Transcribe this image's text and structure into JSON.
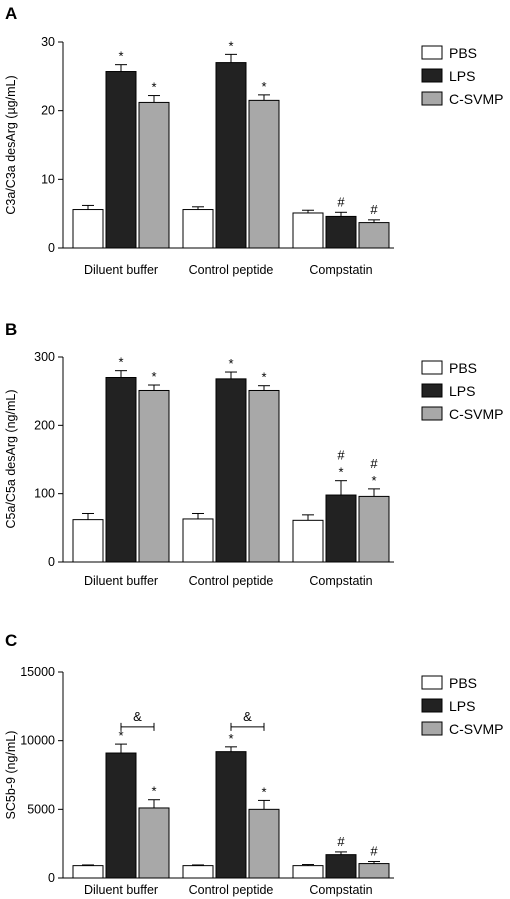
{
  "chart_data": [
    {
      "panel": "A",
      "type": "bar",
      "ylabel": "C3a/C3a desArg (µg/mL)",
      "ylim": [
        0,
        30
      ],
      "yticks": [
        0,
        10,
        20,
        30
      ],
      "categories": [
        "Diluent buffer",
        "Control peptide",
        "Compstatin"
      ],
      "legend": {
        "placement": "right"
      },
      "series": [
        {
          "name": "PBS",
          "color": "#ffffff",
          "values": [
            5.6,
            5.6,
            5.1
          ],
          "errors": [
            0.6,
            0.4,
            0.4
          ],
          "marks": [
            "",
            "",
            ""
          ]
        },
        {
          "name": "LPS",
          "color": "#222222",
          "values": [
            25.7,
            27.0,
            4.6
          ],
          "errors": [
            1.0,
            1.2,
            0.6
          ],
          "marks": [
            "*",
            "*",
            "#"
          ]
        },
        {
          "name": "C-SVMP",
          "color": "#a8a8a8",
          "values": [
            21.2,
            21.5,
            3.7
          ],
          "errors": [
            1.0,
            0.8,
            0.4
          ],
          "marks": [
            "*",
            "*",
            "#"
          ]
        }
      ],
      "brackets": []
    },
    {
      "panel": "B",
      "type": "bar",
      "ylabel": "C5a/C5a desArg (ng/mL)",
      "ylim": [
        0,
        300
      ],
      "yticks": [
        0,
        100,
        200,
        300
      ],
      "categories": [
        "Diluent buffer",
        "Control peptide",
        "Compstatin"
      ],
      "legend": {
        "placement": "right"
      },
      "series": [
        {
          "name": "PBS",
          "color": "#ffffff",
          "values": [
            62,
            63,
            61
          ],
          "errors": [
            9,
            8,
            8
          ],
          "marks": [
            "",
            "",
            ""
          ]
        },
        {
          "name": "LPS",
          "color": "#222222",
          "values": [
            270,
            268,
            98
          ],
          "errors": [
            10,
            10,
            21
          ],
          "marks": [
            "*",
            "*",
            "#*"
          ]
        },
        {
          "name": "C-SVMP",
          "color": "#a8a8a8",
          "values": [
            251,
            251,
            96
          ],
          "errors": [
            8,
            7,
            11
          ],
          "marks": [
            "*",
            "*",
            "#*"
          ]
        }
      ],
      "brackets": []
    },
    {
      "panel": "C",
      "type": "bar",
      "ylabel": "SC5b-9 (ng/mL)",
      "ylim": [
        0,
        15000
      ],
      "yticks": [
        0,
        5000,
        10000,
        15000
      ],
      "categories": [
        "Diluent buffer",
        "Control peptide",
        "Compstatin"
      ],
      "legend": {
        "placement": "right"
      },
      "series": [
        {
          "name": "PBS",
          "color": "#ffffff",
          "values": [
            900,
            900,
            900
          ],
          "errors": [
            50,
            50,
            80
          ],
          "marks": [
            "",
            "",
            ""
          ]
        },
        {
          "name": "LPS",
          "color": "#222222",
          "values": [
            9100,
            9200,
            1700
          ],
          "errors": [
            650,
            350,
            200
          ],
          "marks": [
            "*",
            "*",
            "#"
          ]
        },
        {
          "name": "C-SVMP",
          "color": "#a8a8a8",
          "values": [
            5100,
            5000,
            1050
          ],
          "errors": [
            600,
            650,
            150
          ],
          "marks": [
            "*",
            "*",
            "#"
          ]
        }
      ],
      "brackets": [
        {
          "category": 0,
          "from": 1,
          "to": 2,
          "value": 11000,
          "label": "&"
        },
        {
          "category": 1,
          "from": 1,
          "to": 2,
          "value": 11000,
          "label": "&"
        }
      ]
    }
  ]
}
